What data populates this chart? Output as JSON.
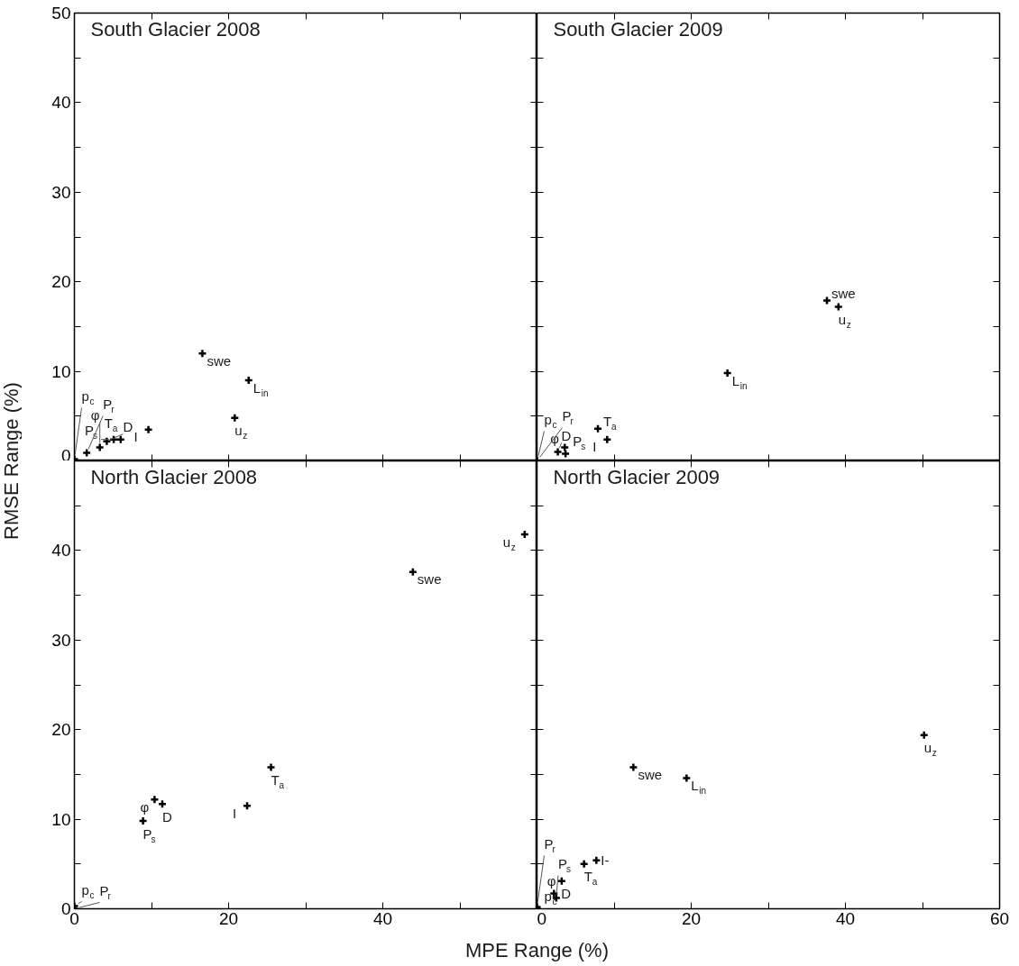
{
  "chart_data": [
    {
      "type": "scatter",
      "title": "South Glacier 2008",
      "marker": "cross",
      "tick_labels": "y",
      "xlim": [
        0,
        60
      ],
      "ylim": [
        0,
        50
      ],
      "xticks": [
        0,
        {
          "value": 10,
          "label": null
        },
        20,
        {
          "value": 30,
          "label": null
        },
        40,
        {
          "value": 50,
          "label": null
        },
        {
          "value": 60,
          "label": null
        }
      ],
      "yticks": [
        0,
        {
          "value": 5,
          "label": null
        },
        10,
        {
          "value": 15,
          "label": null
        },
        20,
        {
          "value": 25,
          "label": null
        },
        30,
        {
          "value": 35,
          "label": null
        },
        40,
        {
          "value": 45,
          "label": null
        },
        50
      ],
      "series": [
        {
          "color": "#000000",
          "x": [
            16.6,
            22.6,
            20.8,
            9.6,
            6.0,
            5.1,
            4.2,
            3.3,
            1.6,
            0
          ],
          "values": [
            12.0,
            9.0,
            4.8,
            3.5,
            2.4,
            2.4,
            2.2,
            1.5,
            0.9,
            0.2
          ]
        }
      ],
      "annotations": [
        {
          "text": "swe",
          "x": 16.6,
          "y": 12.0
        },
        {
          "text": "L$_{in}$",
          "x": 22.6,
          "y": 9.0
        },
        {
          "text": "u$_{z}$",
          "x": 20.8,
          "y": 4.8
        },
        {
          "text": "I",
          "x": 9.6,
          "y": 3.5
        },
        {
          "text": "T$_{a}$",
          "x": 6.0,
          "y": 2.4
        },
        {
          "text": "P$_{s}$",
          "x": 5.1,
          "y": 2.4
        },
        {
          "text": "D",
          "x": 4.2,
          "y": 2.2
        },
        {
          "text": "φ",
          "x": 3.3,
          "y": 1.5
        },
        {
          "text": "P$_{r}$",
          "x": 1.6,
          "y": 0.9
        },
        {
          "text": "p$_{c}$",
          "x": 0,
          "y": 0.2
        }
      ]
    },
    {
      "type": "scatter",
      "title": "South Glacier 2009",
      "marker": "cross",
      "tick_labels": false,
      "xlim": [
        0,
        60
      ],
      "ylim": [
        0,
        50
      ],
      "xticks": [
        0,
        {
          "value": 10,
          "label": null
        },
        20,
        {
          "value": 30,
          "label": null
        },
        40,
        {
          "value": 50,
          "label": null
        },
        60
      ],
      "yticks": [
        0,
        {
          "value": 5,
          "label": null
        },
        10,
        {
          "value": 15,
          "label": null
        },
        20,
        {
          "value": 25,
          "label": null
        },
        30,
        {
          "value": 35,
          "label": null
        },
        40,
        {
          "value": 45,
          "label": null
        },
        50
      ],
      "series": [
        {
          "color": "#000000",
          "x": [
            37.6,
            39.1,
            24.7,
            7.9,
            9.1,
            3.6,
            2.7,
            3.7,
            0,
            0
          ],
          "values": [
            17.9,
            17.2,
            9.8,
            3.6,
            2.4,
            1.5,
            1.0,
            0.8,
            0,
            0
          ]
        }
      ],
      "annotations": [
        {
          "text": "swe",
          "x": 37.6,
          "y": 17.9
        },
        {
          "text": "u$_{z}$",
          "x": 39.1,
          "y": 17.2
        },
        {
          "text": "L$_{in}$",
          "x": 24.7,
          "y": 9.8
        },
        {
          "text": "T$_{a}$",
          "x": 7.9,
          "y": 3.6
        },
        {
          "text": "I",
          "x": 9.1,
          "y": 2.4
        },
        {
          "text": "φ",
          "x": 3.6,
          "y": 1.5
        },
        {
          "text": "D",
          "x": 2.7,
          "y": 1.0
        },
        {
          "text": "P$_{s}$",
          "x": 3.7,
          "y": 0.8
        },
        {
          "text": "p$_{c}$",
          "x": 0,
          "y": 0
        },
        {
          "text": "P$_{r}$",
          "x": 0,
          "y": 0
        }
      ]
    },
    {
      "type": "scatter",
      "title": "North Glacier 2008",
      "marker": "cross",
      "xlabel": "MPE Range (%)",
      "ylabel": "RMSE Range (%)",
      "xlim": [
        0,
        60
      ],
      "ylim": [
        0,
        50
      ],
      "xticks": [
        0,
        {
          "value": 10,
          "label": null
        },
        20,
        {
          "value": 30,
          "label": null
        },
        40,
        {
          "value": 50,
          "label": null
        },
        {
          "value": 60,
          "label": null
        }
      ],
      "yticks": [
        0,
        {
          "value": 5,
          "label": null
        },
        10,
        {
          "value": 15,
          "label": null
        },
        20,
        {
          "value": 25,
          "label": null
        },
        30,
        {
          "value": 35,
          "label": null
        },
        40,
        {
          "value": 45,
          "label": null
        },
        {
          "value": 50,
          "label": null
        }
      ],
      "series": [
        {
          "color": "#000000",
          "x": [
            58.4,
            43.9,
            25.5,
            22.4,
            10.4,
            11.4,
            8.9,
            0,
            0
          ],
          "values": [
            41.8,
            37.6,
            15.8,
            11.5,
            12.2,
            11.7,
            9.8,
            0.3,
            0
          ]
        }
      ],
      "annotations": [
        {
          "text": "u$_{z}$",
          "x": 58.4,
          "y": 41.8
        },
        {
          "text": "swe",
          "x": 43.9,
          "y": 37.6
        },
        {
          "text": "T$_{a}$",
          "x": 25.5,
          "y": 15.8
        },
        {
          "text": "I",
          "x": 22.4,
          "y": 11.5
        },
        {
          "text": "φ",
          "x": 10.4,
          "y": 12.2
        },
        {
          "text": "D",
          "x": 11.4,
          "y": 11.7
        },
        {
          "text": "P$_{s}$",
          "x": 8.9,
          "y": 9.8
        },
        {
          "text": "p$_{c}$",
          "x": 0,
          "y": 0.3
        },
        {
          "text": "P$_{r}$",
          "x": 0,
          "y": 0
        }
      ]
    },
    {
      "type": "scatter",
      "title": "North Glacier 2009",
      "marker": "cross",
      "tick_labels": "x",
      "xlim": [
        0,
        60
      ],
      "ylim": [
        0,
        50
      ],
      "xticks": [
        0,
        {
          "value": 10,
          "label": null
        },
        20,
        {
          "value": 30,
          "label": null
        },
        40,
        {
          "value": 50,
          "label": null
        },
        60
      ],
      "yticks": [
        0,
        {
          "value": 5,
          "label": null
        },
        10,
        {
          "value": 15,
          "label": null
        },
        20,
        {
          "value": 25,
          "label": null
        },
        30,
        {
          "value": 35,
          "label": null
        },
        40,
        {
          "value": 45,
          "label": null
        },
        {
          "value": 50,
          "label": null
        }
      ],
      "series": [
        {
          "color": "#000000",
          "x": [
            50.2,
            12.5,
            19.4,
            6.1,
            7.7,
            3.2,
            2.2,
            2.5,
            0,
            0
          ],
          "values": [
            19.4,
            15.8,
            14.6,
            5.0,
            5.4,
            3.1,
            1.7,
            1.2,
            0.2,
            0
          ]
        }
      ],
      "annotations": [
        {
          "text": "u$_{z}$",
          "x": 50.2,
          "y": 19.4
        },
        {
          "text": "swe",
          "x": 12.5,
          "y": 15.8
        },
        {
          "text": "L$_{in}$",
          "x": 19.4,
          "y": 14.6
        },
        {
          "text": "T$_{a}$",
          "x": 6.1,
          "y": 5.0
        },
        {
          "text": "I-",
          "x": 7.7,
          "y": 5.4
        },
        {
          "text": "φ",
          "x": 3.2,
          "y": 3.1
        },
        {
          "text": "D",
          "x": 2.2,
          "y": 1.7
        },
        {
          "text": "P$_{s}$",
          "x": 2.5,
          "y": 1.2
        },
        {
          "text": "P$_{r}$",
          "x": 0,
          "y": 0.2
        },
        {
          "text": "p$_{c}$",
          "x": 0,
          "y": 0
        }
      ]
    }
  ]
}
